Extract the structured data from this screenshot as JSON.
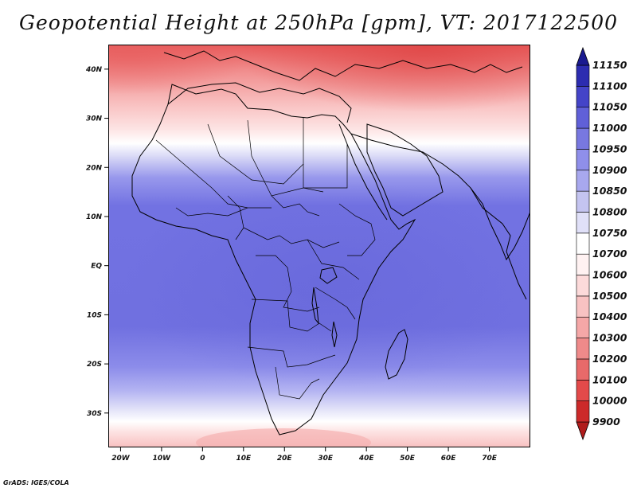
{
  "title": "Geopotential Height at 250hPa [gpm], VT: 2017122500",
  "credit": "GrADS: IGES/COLA",
  "map": {
    "lon_range": [
      -23,
      80
    ],
    "lat_range": [
      -37,
      45
    ],
    "lon_ticks": [
      "20W",
      "10W",
      "0",
      "10E",
      "20E",
      "30E",
      "40E",
      "50E",
      "60E",
      "70E"
    ],
    "lon_tick_values": [
      -20,
      -10,
      0,
      10,
      20,
      30,
      40,
      50,
      60,
      70
    ],
    "lat_ticks": [
      "40N",
      "30N",
      "20N",
      "10N",
      "EQ",
      "10S",
      "20S",
      "30S"
    ],
    "lat_tick_values": [
      40,
      30,
      20,
      10,
      0,
      -10,
      -20,
      -30
    ]
  },
  "colorbar": {
    "levels": [
      "9900",
      "10000",
      "10100",
      "10200",
      "10300",
      "10400",
      "10500",
      "10600",
      "10700",
      "10750",
      "10800",
      "10850",
      "10900",
      "10950",
      "11000",
      "11050",
      "11100",
      "11150"
    ],
    "colors": [
      "#b01c1c",
      "#cc2a2a",
      "#e34a4a",
      "#e86a6a",
      "#ef8a8a",
      "#f5a7a7",
      "#f8c2c2",
      "#fcdada",
      "#fff2f2",
      "#ffffff",
      "#e0e0f8",
      "#c4c4f0",
      "#a8a8ee",
      "#8f8fea",
      "#7878e0",
      "#6060d8",
      "#4444c8",
      "#2c2cb0",
      "#1a1a90"
    ]
  },
  "colors": {
    "ocean_blue": "#7676e4",
    "land_blue": "#6c6ce0",
    "border": "#000000"
  }
}
